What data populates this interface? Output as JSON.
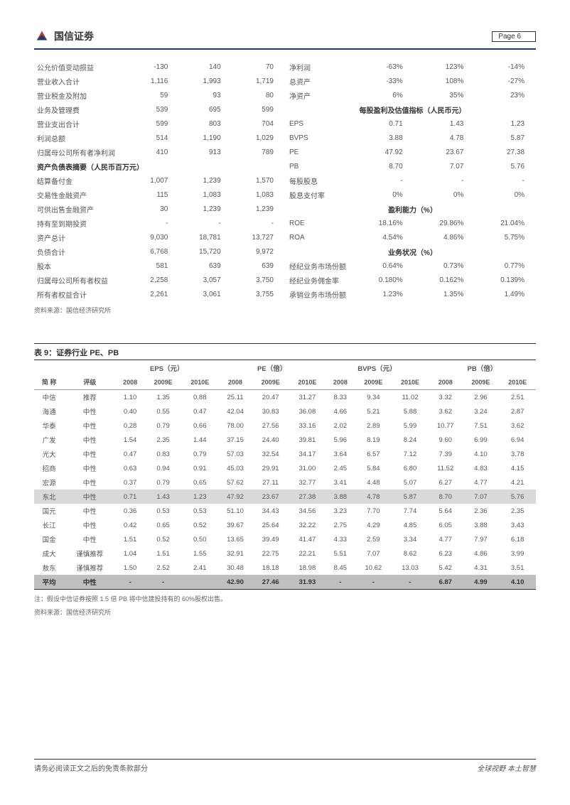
{
  "header": {
    "company": "国信证劵",
    "page_label": "Page  6"
  },
  "table_left": {
    "rows": [
      {
        "label": "公允价值变动损益",
        "v1": "-130",
        "v2": "140",
        "v3": "70"
      },
      {
        "label": "营业收入合计",
        "v1": "1,116",
        "v2": "1,993",
        "v3": "1,719"
      },
      {
        "label": "营业税金及附加",
        "v1": "59",
        "v2": "93",
        "v3": "80"
      },
      {
        "label": "业务及管理费",
        "v1": "539",
        "v2": "695",
        "v3": "599"
      },
      {
        "label": "营业支出合计",
        "v1": "599",
        "v2": "803",
        "v3": "704"
      },
      {
        "label": "利润总额",
        "v1": "514",
        "v2": "1,190",
        "v3": "1,029"
      },
      {
        "label": "归属母公司所有者净利润",
        "v1": "410",
        "v2": "913",
        "v3": "789"
      }
    ],
    "section": "资产负债表摘要（人民币百万元）",
    "rows2": [
      {
        "label": "结算备付金",
        "v1": "1,007",
        "v2": "1,239",
        "v3": "1,570"
      },
      {
        "label": "交易性金融资产",
        "v1": "115",
        "v2": "1,083",
        "v3": "1,083"
      },
      {
        "label": "可供出售金融资产",
        "v1": "30",
        "v2": "1,239",
        "v3": "1,239"
      },
      {
        "label": "持有至到期投资",
        "v1": "-",
        "v2": "-",
        "v3": "-"
      },
      {
        "label": "资产总计",
        "v1": "9,030",
        "v2": "18,781",
        "v3": "13,727"
      },
      {
        "label": "负债合计",
        "v1": "6,768",
        "v2": "15,720",
        "v3": "9,972"
      },
      {
        "label": "股本",
        "v1": "581",
        "v2": "639",
        "v3": "639"
      },
      {
        "label": "归属母公司所有者权益",
        "v1": "2,258",
        "v2": "3,057",
        "v3": "3,750"
      },
      {
        "label": "所有者权益合计",
        "v1": "2,261",
        "v2": "3,061",
        "v3": "3,755"
      }
    ]
  },
  "table_right": {
    "rows": [
      {
        "label": "净利润",
        "v1": "-63%",
        "v2": "123%",
        "v3": "-14%"
      },
      {
        "label": "总资产",
        "v1": "-33%",
        "v2": "108%",
        "v3": "-27%"
      },
      {
        "label": "净资产",
        "v1": "6%",
        "v2": "35%",
        "v3": "23%"
      }
    ],
    "section1": "每股盈利及估值指标（人民币元）",
    "rows2": [
      {
        "label": "EPS",
        "v1": "0.71",
        "v2": "1.43",
        "v3": "1.23"
      },
      {
        "label": "BVPS",
        "v1": "3.88",
        "v2": "4.78",
        "v3": "5.87"
      },
      {
        "label": "PE",
        "v1": "47.92",
        "v2": "23.67",
        "v3": "27.38"
      },
      {
        "label": "PB",
        "v1": "8.70",
        "v2": "7.07",
        "v3": "5.76"
      },
      {
        "label": "每股股息",
        "v1": "-",
        "v2": "-",
        "v3": "-"
      },
      {
        "label": "股息支付率",
        "v1": "0%",
        "v2": "0%",
        "v3": "0%"
      }
    ],
    "section2": "盈利能力（%）",
    "rows3": [
      {
        "label": "ROE",
        "v1": "18.16%",
        "v2": "29.86%",
        "v3": "21.04%"
      },
      {
        "label": "ROA",
        "v1": "4.54%",
        "v2": "4.86%",
        "v3": "5.75%"
      }
    ],
    "section3": "业务状况（%）",
    "rows4": [
      {
        "label": "经纪业务市场份额",
        "v1": "0.64%",
        "v2": "0.73%",
        "v3": "0.77%"
      },
      {
        "label": "经纪业务佣金率",
        "v1": "0.180%",
        "v2": "0.162%",
        "v3": "0.139%"
      },
      {
        "label": "承销业务市场份额",
        "v1": "1.23%",
        "v2": "1.35%",
        "v3": "1.49%"
      }
    ]
  },
  "source1": "资料来源：国信经济研究所",
  "table9": {
    "title": "表 9：证券行业 PE、PB",
    "groups": [
      "EPS（元）",
      "PE（倍）",
      "BVPS（元）",
      "PB（倍）"
    ],
    "cols": [
      "简   称",
      "评级",
      "2008",
      "2009E",
      "2010E",
      "2008",
      "2009E",
      "2010E",
      "2008",
      "2009E",
      "2010E",
      "2008",
      "2009E",
      "2010E"
    ],
    "rows": [
      [
        "中信",
        "推荐",
        "1.10",
        "1.35",
        "0.88",
        "25.11",
        "20.47",
        "31.27",
        "8.33",
        "9.34",
        "11.02",
        "3.32",
        "2.96",
        "2.51"
      ],
      [
        "海通",
        "中性",
        "0.40",
        "0.55",
        "0.47",
        "42.04",
        "30.83",
        "36.08",
        "4.66",
        "5.21",
        "5.88",
        "3.62",
        "3.24",
        "2.87"
      ],
      [
        "华泰",
        "中性",
        "0.28",
        "0.79",
        "0.66",
        "78.00",
        "27.56",
        "33.16",
        "2.02",
        "2.89",
        "5.99",
        "10.77",
        "7.51",
        "3.62"
      ],
      [
        "广发",
        "中性",
        "1.54",
        "2.35",
        "1.44",
        "37.15",
        "24.40",
        "39.81",
        "5.96",
        "8.19",
        "8.24",
        "9.60",
        "6.99",
        "6.94"
      ],
      [
        "光大",
        "中性",
        "0.47",
        "0.83",
        "0.79",
        "57.03",
        "32.54",
        "34.17",
        "3.64",
        "6.57",
        "7.12",
        "7.39",
        "4.10",
        "3.78"
      ],
      [
        "招商",
        "中性",
        "0.63",
        "0.94",
        "0.91",
        "45.03",
        "29.91",
        "31.00",
        "2.45",
        "5.84",
        "6.80",
        "11.52",
        "4.83",
        "4.15"
      ],
      [
        "宏源",
        "中性",
        "0.37",
        "0.79",
        "0.65",
        "57.62",
        "27.11",
        "32.77",
        "3.41",
        "4.48",
        "5.07",
        "6.27",
        "4.77",
        "4.21"
      ]
    ],
    "hl_row": [
      "东北",
      "中性",
      "0.71",
      "1.43",
      "1.23",
      "47.92",
      "23.67",
      "27.38",
      "3.88",
      "4.78",
      "5.87",
      "8.70",
      "7.07",
      "5.76"
    ],
    "rows2": [
      [
        "国元",
        "中性",
        "0.36",
        "0.53",
        "0.53",
        "51.10",
        "34.43",
        "34.56",
        "3.23",
        "7.70",
        "7.74",
        "5.64",
        "2.36",
        "2.35"
      ],
      [
        "长江",
        "中性",
        "0.42",
        "0.65",
        "0.52",
        "39.67",
        "25.64",
        "32.22",
        "2.75",
        "4.29",
        "4.85",
        "6.05",
        "3.88",
        "3.43"
      ],
      [
        "国金",
        "中性",
        "1.51",
        "0.52",
        "0.50",
        "13.65",
        "39.49",
        "41.47",
        "4.33",
        "2.59",
        "3.34",
        "4.77",
        "7.97",
        "6.18"
      ],
      [
        "成大",
        "谨慎推荐",
        "1.04",
        "1.51",
        "1.55",
        "32.91",
        "22.75",
        "22.21",
        "5.51",
        "7.07",
        "8.62",
        "6.23",
        "4.86",
        "3.99"
      ],
      [
        "敖东",
        "谨慎推荐",
        "1.50",
        "2.52",
        "2.41",
        "30.48",
        "18.18",
        "18.98",
        "8.45",
        "10.62",
        "13.03",
        "5.42",
        "4.31",
        "3.51"
      ]
    ],
    "avg_row": [
      "平均",
      "中性",
      "-",
      "-",
      "",
      "42.90",
      "27.46",
      "31.93",
      "-",
      "-",
      "-",
      "6.87",
      "4.99",
      "4.10"
    ]
  },
  "note": "注：假设中信证券按照 1.5 倍 PB 将中信建投持有的 60%股权出售。",
  "source2": "资料来源：国信经济研究所",
  "footer": {
    "left": "请务必阅读正文之后的免责条款部分",
    "right": "全球视野  本土智慧"
  }
}
